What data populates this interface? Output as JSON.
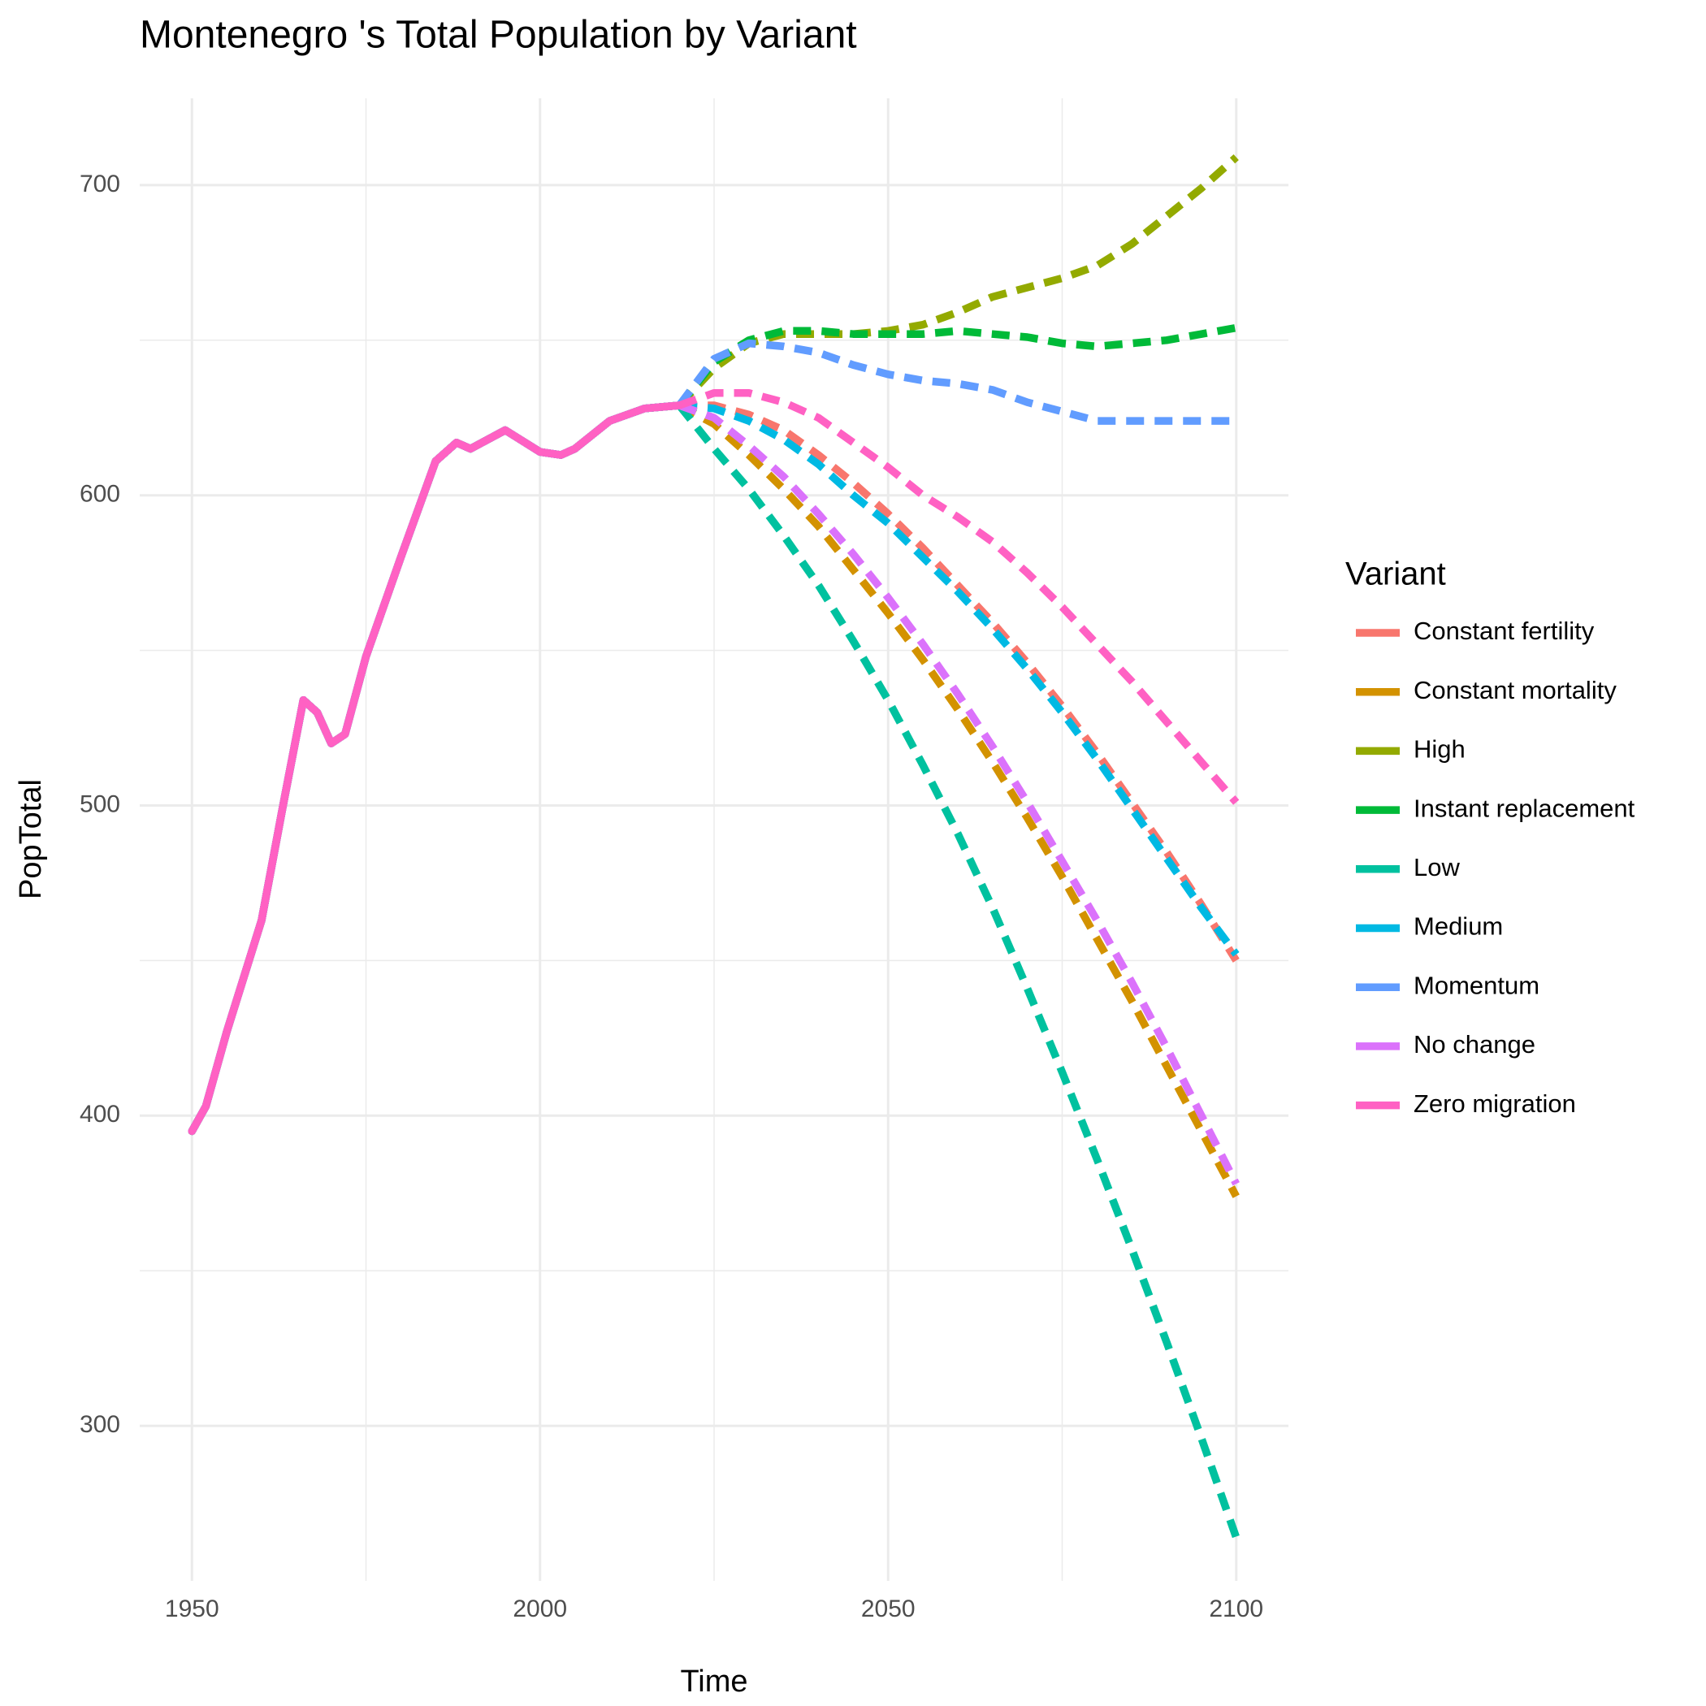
{
  "chart_data": {
    "type": "line",
    "title": "Montenegro 's Total Population by Variant",
    "x_label": "Time",
    "y_label": "PopTotal",
    "legend_title": "Variant",
    "x": [
      1950,
      1952,
      1955,
      1960,
      1963,
      1966,
      1968,
      1970,
      1972,
      1975,
      1980,
      1985,
      1988,
      1990,
      1995,
      2000,
      2003,
      2005,
      2010,
      2015,
      2020,
      2025,
      2030,
      2035,
      2040,
      2045,
      2050,
      2055,
      2060,
      2065,
      2070,
      2075,
      2080,
      2085,
      2090,
      2095,
      2100
    ],
    "projection_start": 2020,
    "xlim": [
      1942.5,
      2107.5
    ],
    "xticks": [
      1950,
      2000,
      2050,
      2100
    ],
    "x_minor_grid": [
      1975,
      2025,
      2075
    ],
    "ylim": [
      250,
      728
    ],
    "yticks": [
      300,
      400,
      500,
      600,
      700
    ],
    "y_minor_grid": [
      350,
      450,
      550,
      650
    ],
    "grid": true,
    "legend": "right",
    "series": [
      {
        "name": "Constant fertility",
        "color": "#F8766D",
        "values": [
          395,
          403,
          427,
          463,
          499,
          534,
          530,
          520,
          523,
          548,
          580,
          611,
          617,
          615,
          621,
          614,
          613,
          615,
          624,
          628,
          629,
          629,
          626,
          621,
          613,
          604,
          594,
          583,
          571,
          559,
          546,
          532,
          517,
          501,
          485,
          468,
          450
        ]
      },
      {
        "name": "Constant mortality",
        "color": "#D39200",
        "values": [
          395,
          403,
          427,
          463,
          499,
          534,
          530,
          520,
          523,
          548,
          580,
          611,
          617,
          615,
          621,
          614,
          613,
          615,
          624,
          628,
          629,
          623,
          613,
          602,
          590,
          576,
          562,
          547,
          531,
          514,
          496,
          477,
          457,
          437,
          416,
          395,
          374
        ]
      },
      {
        "name": "High",
        "color": "#93AA00",
        "values": [
          395,
          403,
          427,
          463,
          499,
          534,
          530,
          520,
          523,
          548,
          580,
          611,
          617,
          615,
          621,
          614,
          613,
          615,
          624,
          628,
          629,
          641,
          649,
          652,
          652,
          652,
          653,
          655,
          659,
          664,
          667,
          670,
          674,
          681,
          690,
          699,
          709
        ]
      },
      {
        "name": "Instant replacement",
        "color": "#00BA38",
        "values": [
          395,
          403,
          427,
          463,
          499,
          534,
          530,
          520,
          523,
          548,
          580,
          611,
          617,
          615,
          621,
          614,
          613,
          615,
          624,
          628,
          629,
          643,
          650,
          653,
          653,
          652,
          652,
          652,
          653,
          652,
          651,
          649,
          648,
          649,
          650,
          652,
          654
        ]
      },
      {
        "name": "Low",
        "color": "#00C19F",
        "values": [
          395,
          403,
          427,
          463,
          499,
          534,
          530,
          520,
          523,
          548,
          580,
          611,
          617,
          615,
          621,
          614,
          613,
          615,
          624,
          628,
          629,
          615,
          602,
          587,
          571,
          553,
          534,
          513,
          491,
          467,
          441,
          414,
          386,
          357,
          327,
          296,
          264
        ]
      },
      {
        "name": "Medium",
        "color": "#00B9E3",
        "values": [
          395,
          403,
          427,
          463,
          499,
          534,
          530,
          520,
          523,
          548,
          580,
          611,
          617,
          615,
          621,
          614,
          613,
          615,
          624,
          628,
          629,
          628,
          624,
          618,
          610,
          600,
          591,
          580,
          569,
          557,
          544,
          530,
          515,
          499,
          483,
          467,
          452
        ]
      },
      {
        "name": "Momentum",
        "color": "#619CFF",
        "values": [
          395,
          403,
          427,
          463,
          499,
          534,
          530,
          520,
          523,
          548,
          580,
          611,
          617,
          615,
          621,
          614,
          613,
          615,
          624,
          628,
          629,
          644,
          649,
          648,
          646,
          642,
          639,
          637,
          636,
          634,
          630,
          627,
          624,
          624,
          624,
          624,
          624
        ]
      },
      {
        "name": "No change",
        "color": "#DB72FB",
        "values": [
          395,
          403,
          427,
          463,
          499,
          534,
          530,
          520,
          523,
          548,
          580,
          611,
          617,
          615,
          621,
          614,
          613,
          615,
          624,
          628,
          629,
          625,
          616,
          606,
          594,
          581,
          567,
          552,
          536,
          519,
          501,
          482,
          463,
          443,
          422,
          400,
          378
        ]
      },
      {
        "name": "Zero migration",
        "color": "#FF61C3",
        "values": [
          395,
          403,
          427,
          463,
          499,
          534,
          530,
          520,
          523,
          548,
          580,
          611,
          617,
          615,
          621,
          614,
          613,
          615,
          624,
          628,
          629,
          633,
          633,
          630,
          625,
          617,
          609,
          600,
          593,
          585,
          575,
          564,
          552,
          540,
          527,
          514,
          501
        ]
      }
    ]
  }
}
